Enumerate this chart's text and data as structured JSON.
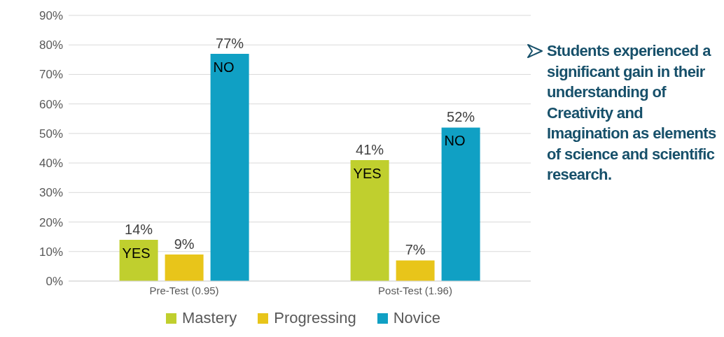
{
  "chart_data": {
    "type": "bar",
    "categories": [
      "Pre-Test (0.95)",
      "Post-Test (1.96)"
    ],
    "series": [
      {
        "name": "Mastery",
        "color": "#c0cf2e",
        "values": [
          14,
          41
        ],
        "value_labels": [
          "14%",
          "41%"
        ]
      },
      {
        "name": "Progressing",
        "color": "#e8c51a",
        "values": [
          9,
          7
        ],
        "value_labels": [
          "9%",
          "7%"
        ]
      },
      {
        "name": "Novice",
        "color": "#10a0c4",
        "values": [
          77,
          52
        ],
        "value_labels": [
          "77%",
          "52%"
        ]
      }
    ],
    "ylim": [
      0,
      90
    ],
    "yticks": [
      {
        "value": 0,
        "label": "0%"
      },
      {
        "value": 10,
        "label": "10%"
      },
      {
        "value": 20,
        "label": "20%"
      },
      {
        "value": 30,
        "label": "30%"
      },
      {
        "value": 40,
        "label": "40%"
      },
      {
        "value": 50,
        "label": "50%"
      },
      {
        "value": 60,
        "label": "60%"
      },
      {
        "value": 70,
        "label": "70%"
      },
      {
        "value": 80,
        "label": "80%"
      },
      {
        "value": 90,
        "label": "90%"
      }
    ],
    "grid": "y",
    "legend": "bottom",
    "annotations": [
      "YES",
      "NO",
      "YES",
      "NO",
      "Students experienced a significant gain in their understanding of Creativity and Imagination as elements of science and scientific research."
    ]
  }
}
